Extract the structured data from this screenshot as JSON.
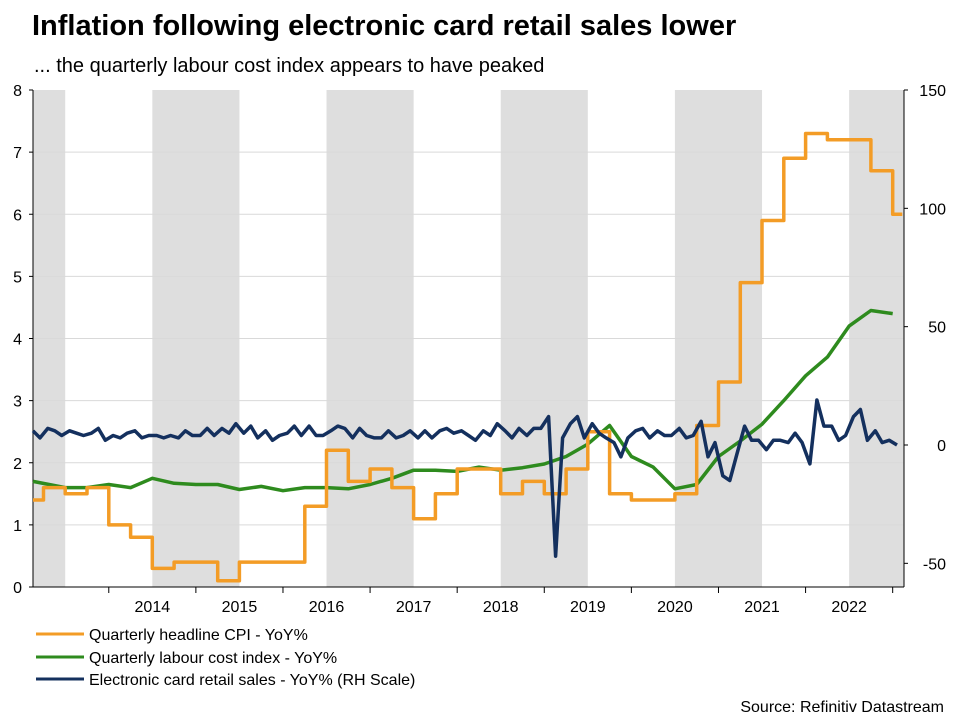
{
  "chart_data": {
    "type": "line",
    "title": "Inflation following electronic card retail sales lower",
    "subtitle": "... the quarterly labour cost index appears to have peaked",
    "source": "Source: Refinitiv Datastream",
    "x_start": 2013.13,
    "x_end": 2023.13,
    "left_axis": {
      "min": 0,
      "max": 8,
      "ticks": [
        "0",
        "1",
        "2",
        "3",
        "4",
        "5",
        "6",
        "7",
        "8"
      ]
    },
    "right_axis": {
      "min": -60,
      "max": 150,
      "ticks": [
        "-50",
        "0",
        "50",
        "100",
        "150"
      ]
    },
    "year_labels": [
      "2014",
      "2015",
      "2016",
      "2017",
      "2018",
      "2019",
      "2020",
      "2021",
      "2022"
    ],
    "shaded_bands": [
      [
        2013.13,
        2013.5
      ],
      [
        2014.5,
        2015.5
      ],
      [
        2016.5,
        2017.5
      ],
      [
        2018.5,
        2019.5
      ],
      [
        2020.5,
        2021.5
      ],
      [
        2022.5,
        2023.13
      ]
    ],
    "colors": {
      "cpi": "#F39C26",
      "lci": "#2E8B1E",
      "card": "#14305E",
      "band": "#DEDEDE",
      "grid": "#D9D9D9"
    },
    "series": [
      {
        "name": "Quarterly headline CPI - YoY%",
        "key": "cpi",
        "axis": "left",
        "step": true,
        "x": [
          2013.13,
          2013.25,
          2013.5,
          2013.75,
          2014.0,
          2014.25,
          2014.5,
          2014.75,
          2015.0,
          2015.25,
          2015.5,
          2015.75,
          2016.0,
          2016.25,
          2016.5,
          2016.75,
          2017.0,
          2017.25,
          2017.5,
          2017.75,
          2018.0,
          2018.25,
          2018.5,
          2018.75,
          2019.0,
          2019.25,
          2019.5,
          2019.75,
          2020.0,
          2020.25,
          2020.5,
          2020.75,
          2021.0,
          2021.25,
          2021.5,
          2021.75,
          2022.0,
          2022.25,
          2022.5,
          2022.75,
          2023.0
        ],
        "values": [
          1.4,
          1.6,
          1.5,
          1.6,
          1.0,
          0.8,
          0.3,
          0.4,
          0.4,
          0.1,
          0.4,
          0.4,
          0.4,
          1.3,
          2.2,
          1.7,
          1.9,
          1.6,
          1.1,
          1.5,
          1.9,
          1.9,
          1.5,
          1.7,
          1.5,
          1.9,
          2.5,
          1.5,
          1.4,
          1.4,
          1.5,
          2.6,
          3.3,
          4.9,
          5.9,
          6.9,
          7.3,
          7.2,
          7.2,
          6.7,
          6.0
        ],
        "x_end": 2023.13
      },
      {
        "name": "Quarterly labour cost index - YoY%",
        "key": "lci",
        "axis": "left",
        "step": false,
        "x": [
          2013.13,
          2013.5,
          2013.75,
          2014.0,
          2014.25,
          2014.5,
          2014.75,
          2015.0,
          2015.25,
          2015.5,
          2015.75,
          2016.0,
          2016.25,
          2016.5,
          2016.75,
          2017.0,
          2017.25,
          2017.5,
          2017.75,
          2018.0,
          2018.25,
          2018.5,
          2018.75,
          2019.0,
          2019.25,
          2019.5,
          2019.75,
          2020.0,
          2020.25,
          2020.5,
          2020.75,
          2021.0,
          2021.25,
          2021.5,
          2021.75,
          2022.0,
          2022.25,
          2022.5,
          2022.75,
          2023.0
        ],
        "values": [
          1.7,
          1.6,
          1.6,
          1.65,
          1.6,
          1.75,
          1.67,
          1.65,
          1.65,
          1.57,
          1.62,
          1.55,
          1.6,
          1.6,
          1.58,
          1.65,
          1.75,
          1.88,
          1.88,
          1.86,
          1.93,
          1.88,
          1.92,
          1.98,
          2.1,
          2.3,
          2.6,
          2.1,
          1.93,
          1.58,
          1.65,
          2.1,
          2.35,
          2.62,
          3.0,
          3.4,
          3.7,
          4.2,
          4.45,
          4.4
        ]
      },
      {
        "name": "Electronic card retail sales - YoY% (RH Scale)",
        "key": "card",
        "axis": "right",
        "step": false,
        "x": [
          2013.13,
          2013.21,
          2013.3,
          2013.38,
          2013.46,
          2013.55,
          2013.63,
          2013.71,
          2013.8,
          2013.88,
          2013.96,
          2014.05,
          2014.13,
          2014.21,
          2014.3,
          2014.38,
          2014.46,
          2014.55,
          2014.63,
          2014.71,
          2014.8,
          2014.88,
          2014.96,
          2015.05,
          2015.13,
          2015.21,
          2015.3,
          2015.38,
          2015.46,
          2015.55,
          2015.63,
          2015.71,
          2015.8,
          2015.88,
          2015.96,
          2016.05,
          2016.13,
          2016.21,
          2016.3,
          2016.38,
          2016.46,
          2016.55,
          2016.63,
          2016.71,
          2016.8,
          2016.88,
          2016.96,
          2017.05,
          2017.13,
          2017.21,
          2017.3,
          2017.38,
          2017.46,
          2017.55,
          2017.63,
          2017.71,
          2017.8,
          2017.88,
          2017.96,
          2018.05,
          2018.13,
          2018.21,
          2018.3,
          2018.38,
          2018.46,
          2018.55,
          2018.63,
          2018.71,
          2018.8,
          2018.88,
          2018.96,
          2019.05,
          2019.13,
          2019.21,
          2019.3,
          2019.38,
          2019.46,
          2019.55,
          2019.63,
          2019.71,
          2019.8,
          2019.88,
          2019.96,
          2020.05,
          2020.13,
          2020.21,
          2020.3,
          2020.38,
          2020.46,
          2020.55,
          2020.63,
          2020.71,
          2020.8,
          2020.88,
          2020.96,
          2021.05,
          2021.13,
          2021.21,
          2021.3,
          2021.38,
          2021.46,
          2021.55,
          2021.63,
          2021.71,
          2021.8,
          2021.88,
          2021.96,
          2022.05,
          2022.13,
          2022.21,
          2022.3,
          2022.38,
          2022.46,
          2022.55,
          2022.63,
          2022.71,
          2022.8,
          2022.88,
          2022.96,
          2023.05
        ],
        "values": [
          6,
          3,
          7,
          6,
          4,
          6,
          5,
          4,
          5,
          7,
          2,
          4,
          3,
          5,
          6,
          3,
          4,
          4,
          3,
          4,
          3,
          6,
          4,
          4,
          7,
          4,
          7,
          5,
          9,
          5,
          8,
          3,
          6,
          2,
          4,
          5,
          8,
          4,
          8,
          4,
          4,
          6,
          8,
          7,
          3,
          7,
          4,
          3,
          3,
          6,
          3,
          4,
          6,
          3,
          6,
          3,
          6,
          7,
          5,
          6,
          4,
          2,
          6,
          4,
          9,
          6,
          3,
          7,
          4,
          7,
          7,
          12,
          -47,
          3,
          9,
          12,
          3,
          9,
          5,
          3,
          1,
          -5,
          3,
          6,
          7,
          3,
          6,
          4,
          4,
          7,
          3,
          4,
          10,
          -5,
          1,
          -13,
          -15,
          -4,
          8,
          2,
          2,
          -2,
          2,
          2,
          1,
          5,
          1,
          -8,
          19,
          8,
          8,
          2,
          4,
          12,
          15,
          2,
          6,
          1,
          2,
          0
        ],
        "values_note": "approximate"
      }
    ]
  }
}
